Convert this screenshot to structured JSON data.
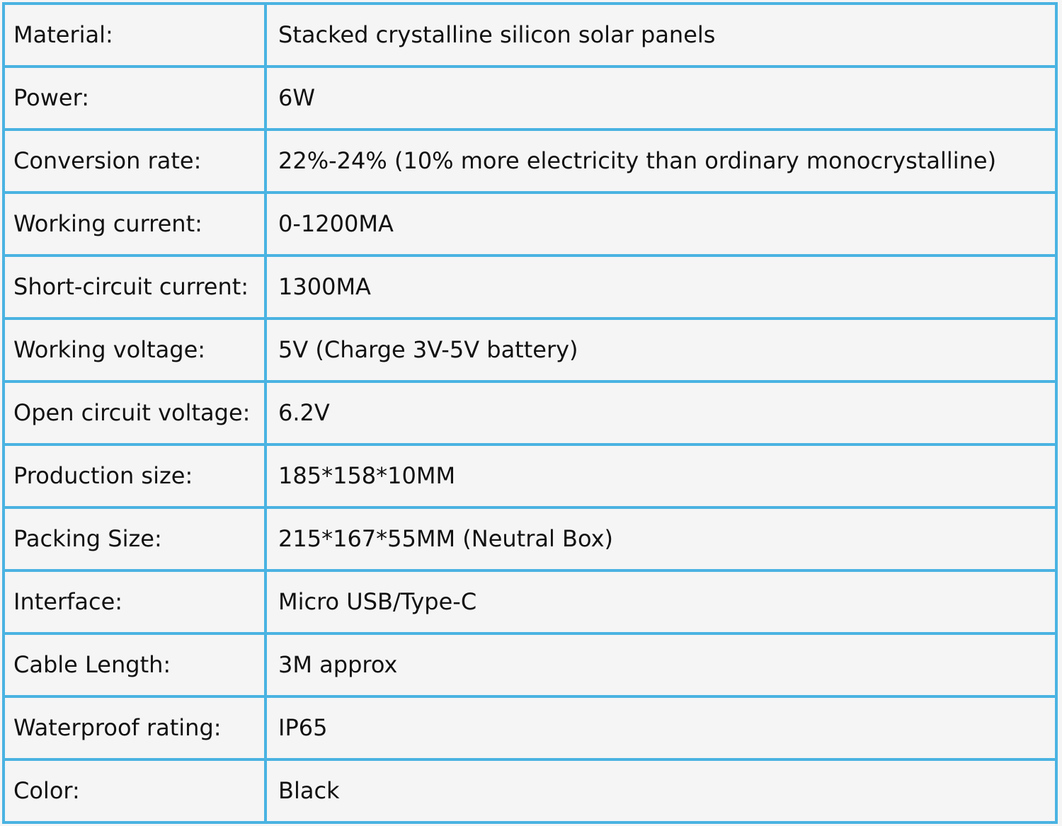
{
  "colors": {
    "border": "#4ab3e2",
    "background": "#f5f5f5",
    "text": "#111111"
  },
  "specs": [
    {
      "label": "Material:",
      "value": "Stacked crystalline silicon solar panels"
    },
    {
      "label": "Power:",
      "value": "6W"
    },
    {
      "label": "Conversion rate:",
      "value": "22%-24% (10% more electricity than ordinary monocrystalline)"
    },
    {
      "label": "Working current:",
      "value": "0-1200MA"
    },
    {
      "label": "Short-circuit current:",
      "value": "1300MA"
    },
    {
      "label": "Working voltage:",
      "value": "5V (Charge 3V-5V battery)"
    },
    {
      "label": "Open circuit voltage:",
      "value": "6.2V"
    },
    {
      "label": "Production size:",
      "value": "185*158*10MM"
    },
    {
      "label": "Packing Size:",
      "value": "215*167*55MM (Neutral Box)"
    },
    {
      "label": "Interface:",
      "value": "Micro USB/Type-C"
    },
    {
      "label": "Cable Length:",
      "value": "3M approx"
    },
    {
      "label": "Waterproof rating:",
      "value": "IP65"
    },
    {
      "label": "Color:",
      "value": "Black"
    }
  ]
}
